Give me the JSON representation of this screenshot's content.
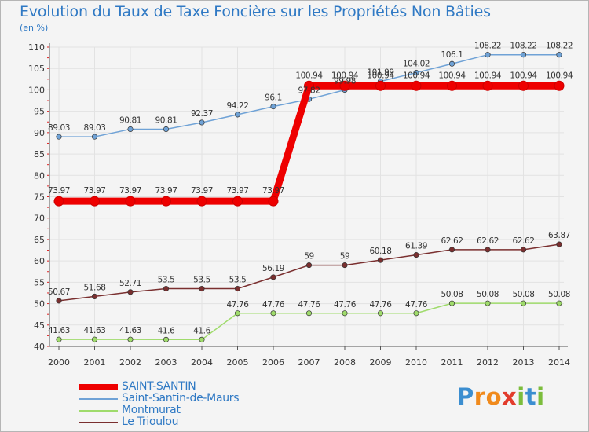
{
  "chart_data": {
    "type": "line",
    "title": "Evolution du Taux de Taxe Foncière sur les Propriétés Non Bâties",
    "ylabel": "(en %)",
    "xlabel": "",
    "ylim": [
      40,
      110
    ],
    "yticks": [
      40,
      45,
      50,
      55,
      60,
      65,
      70,
      75,
      80,
      85,
      90,
      95,
      100,
      105,
      110
    ],
    "categories": [
      "2000",
      "2001",
      "2002",
      "2003",
      "2004",
      "2005",
      "2006",
      "2007",
      "2008",
      "2009",
      "2010",
      "2011",
      "2012",
      "2013",
      "2014"
    ],
    "series": [
      {
        "name": "SAINT-SANTIN",
        "color": "#ee0000",
        "values": [
          73.97,
          73.97,
          73.97,
          73.97,
          73.97,
          73.97,
          73.97,
          100.94,
          100.94,
          100.94,
          100.94,
          100.94,
          100.94,
          100.94,
          100.94
        ],
        "labels": [
          "73.97",
          "73.97",
          "73.97",
          "73.97",
          "73.97",
          "73.97",
          "73.97",
          "100.94",
          "100.94",
          "100.94",
          "100.94",
          "100.94",
          "100.94",
          "100.94",
          "100.94"
        ]
      },
      {
        "name": "Saint-Santin-de-Maurs",
        "color": "#6fa2d6",
        "values": [
          89.03,
          89.03,
          90.81,
          90.81,
          92.37,
          94.22,
          96.1,
          97.82,
          99.98,
          101.99,
          104.02,
          106.1,
          108.22,
          108.22,
          108.22
        ],
        "labels": [
          "89.03",
          "89.03",
          "90.81",
          "90.81",
          "92.37",
          "94.22",
          "96.1",
          "97.82",
          "99.98",
          "101.99",
          "104.02",
          "106.1",
          "108.22",
          "108.22",
          "108.22"
        ]
      },
      {
        "name": "Montmurat",
        "color": "#9fdb6b",
        "values": [
          41.63,
          41.63,
          41.63,
          41.6,
          41.6,
          47.76,
          47.76,
          47.76,
          47.76,
          47.76,
          47.76,
          50.08,
          50.08,
          50.08,
          50.08
        ],
        "labels": [
          "41.63",
          "41.63",
          "41.63",
          "41.6",
          "41.6",
          "47.76",
          "47.76",
          "47.76",
          "47.76",
          "47.76",
          "47.76",
          "50.08",
          "50.08",
          "50.08",
          "50.08"
        ]
      },
      {
        "name": "Le Trioulou",
        "color": "#7a2f2f",
        "values": [
          50.67,
          51.68,
          52.71,
          53.5,
          53.5,
          53.5,
          56.19,
          59,
          59,
          60.18,
          61.39,
          62.62,
          62.62,
          62.62,
          63.87
        ],
        "labels": [
          "50.67",
          "51.68",
          "52.71",
          "53.5",
          "53.5",
          "53.5",
          "56.19",
          "59",
          "59",
          "60.18",
          "61.39",
          "62.62",
          "62.62",
          "62.62",
          "63.87"
        ]
      }
    ],
    "grid": true,
    "legend_position": "bottom-left"
  },
  "logo": {
    "letters": [
      "P",
      "r",
      "o",
      "x",
      "i",
      "t",
      "i"
    ],
    "colors": [
      "#3b8ed0",
      "#f08a1c",
      "#f08a1c",
      "#e23c2c",
      "#7cbd3c",
      "#3b8ed0",
      "#7cbd3c"
    ]
  }
}
